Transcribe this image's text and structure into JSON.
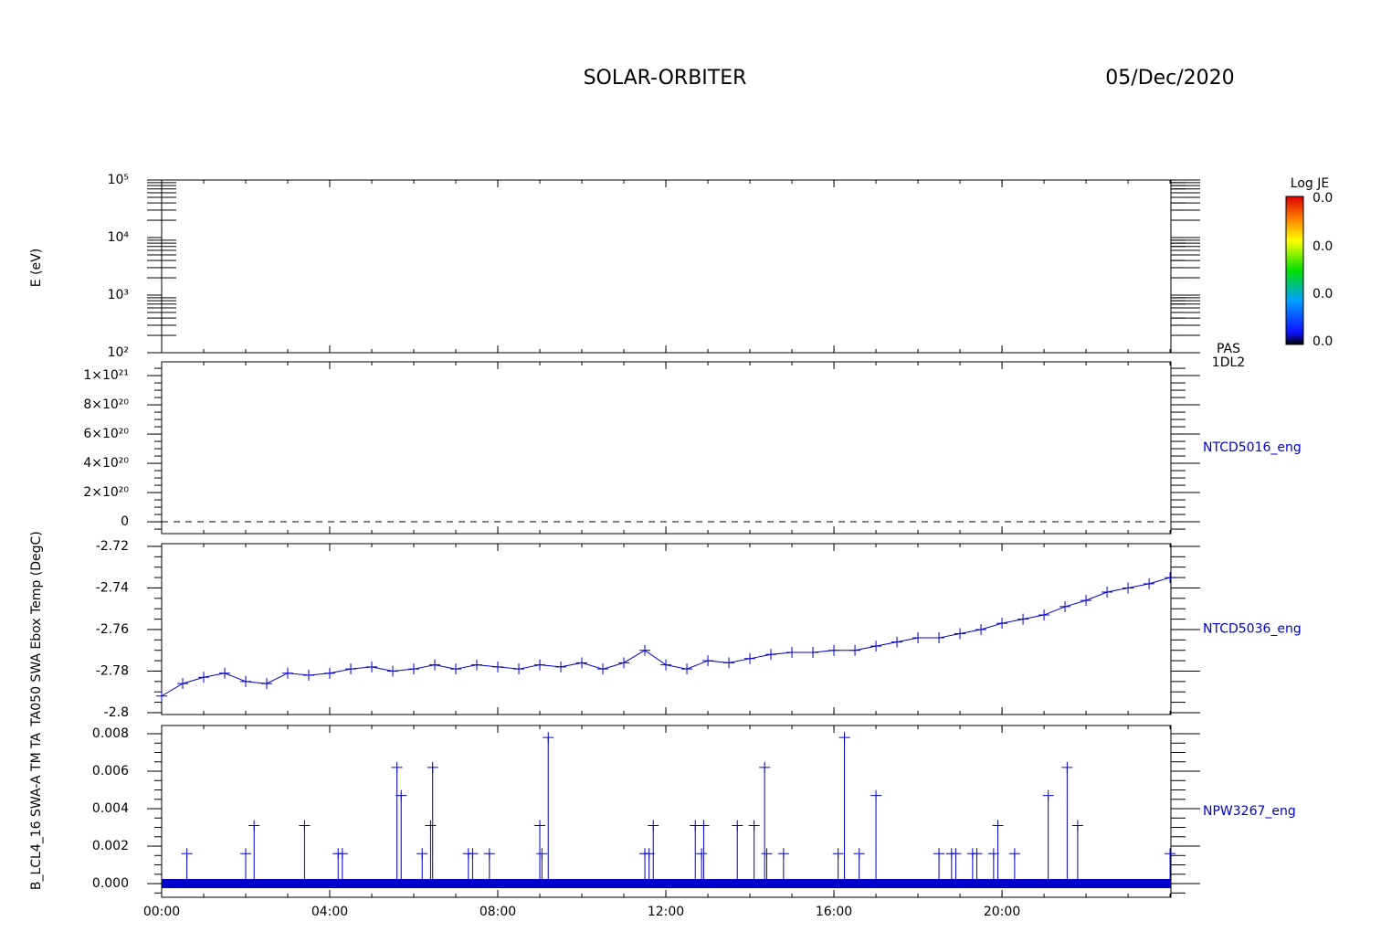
{
  "header": {
    "title": "SOLAR-ORBITER",
    "date": "05/Dec/2020"
  },
  "chart_data": [
    {
      "type": "spectrogram",
      "ylabel": "E (eV)",
      "instrument": "PAS",
      "level": "1DL2",
      "log_y": true,
      "ylim": [
        100,
        100000
      ],
      "yticks": [
        {
          "value": 100,
          "label": "10²"
        },
        {
          "value": 1000,
          "label": "10³"
        },
        {
          "value": 10000,
          "label": "10⁴"
        },
        {
          "value": 100000,
          "label": "10⁵"
        }
      ],
      "colorbar": {
        "title": "Log JE",
        "ticks": [
          "0.0",
          "0.0",
          "0.0",
          "0.0"
        ]
      }
    },
    {
      "type": "empty",
      "label": "NTCD5016_eng",
      "color": "#0000cc",
      "ylim": [
        -8.1e+19,
        1.094e+21
      ],
      "yticks": [
        {
          "value": 0,
          "label": "0"
        },
        {
          "value": 2e+20,
          "label": "2×10²⁰"
        },
        {
          "value": 4e+20,
          "label": "4×10²⁰"
        },
        {
          "value": 6e+20,
          "label": "6×10²⁰"
        },
        {
          "value": 8e+20,
          "label": "8×10²⁰"
        },
        {
          "value": 1e+21,
          "label": "1×10²¹"
        }
      ]
    },
    {
      "type": "line",
      "label": "NTCD5036_eng",
      "ylabel": "TA050 SWA Ebox Temp (DegC)",
      "color": "#0000cc",
      "ylim": [
        -2.8009,
        -2.7187
      ],
      "yticks": [
        -2.8,
        -2.78,
        -2.76,
        -2.74,
        -2.72
      ],
      "x": [
        0,
        0.5,
        1,
        1.5,
        2,
        2.5,
        3,
        3.5,
        4,
        4.5,
        5,
        5.5,
        6,
        6.5,
        7,
        7.5,
        8,
        8.5,
        9,
        9.5,
        10,
        10.5,
        11,
        11.5,
        12,
        12.5,
        13,
        13.5,
        14,
        14.5,
        15,
        15.5,
        16,
        16.5,
        17,
        17.5,
        18,
        18.5,
        19,
        19.5,
        20,
        20.5,
        21,
        21.5,
        22,
        22.5,
        23,
        23.5,
        24
      ],
      "values": [
        -2.792,
        -2.786,
        -2.783,
        -2.781,
        -2.785,
        -2.786,
        -2.781,
        -2.782,
        -2.781,
        -2.779,
        -2.778,
        -2.78,
        -2.779,
        -2.777,
        -2.779,
        -2.777,
        -2.778,
        -2.779,
        -2.777,
        -2.778,
        -2.776,
        -2.779,
        -2.776,
        -2.77,
        -2.777,
        -2.779,
        -2.775,
        -2.776,
        -2.774,
        -2.772,
        -2.771,
        -2.771,
        -2.77,
        -2.77,
        -2.768,
        -2.766,
        -2.764,
        -2.764,
        -2.762,
        -2.76,
        -2.757,
        -2.755,
        -2.753,
        -2.749,
        -2.746,
        -2.742,
        -2.74,
        -2.738,
        -2.735
      ]
    },
    {
      "type": "stem",
      "label": "NPW3267_eng",
      "ylabel": "B_LCL4_16 SWA-A TM TA",
      "color": "#0000cc",
      "ylim": [
        -0.00073,
        0.00844
      ],
      "yticks": [
        {
          "value": 0,
          "label": "0.000"
        },
        {
          "value": 0.002,
          "label": "0.002"
        },
        {
          "value": 0.004,
          "label": "0.004"
        },
        {
          "value": 0.006,
          "label": "0.006"
        },
        {
          "value": 0.008,
          "label": "0.008"
        }
      ],
      "xlim": [
        0,
        24.02
      ],
      "xticks": [
        {
          "value": 0,
          "label": "00:00"
        },
        {
          "value": 4,
          "label": "04:00"
        },
        {
          "value": 8,
          "label": "08:00"
        },
        {
          "value": 12,
          "label": "12:00"
        },
        {
          "value": 16,
          "label": "16:00"
        },
        {
          "value": 20,
          "label": "20:00"
        }
      ],
      "x": [
        0.6,
        2.0,
        2.2,
        3.4,
        4.2,
        4.3,
        5.6,
        5.7,
        6.2,
        6.4,
        6.45,
        7.3,
        7.4,
        7.8,
        9.0,
        9.05,
        9.2,
        11.5,
        11.6,
        11.7,
        12.7,
        12.85,
        12.9,
        13.7,
        14.1,
        14.35,
        14.4,
        14.8,
        16.1,
        16.25,
        16.6,
        17.0,
        18.5,
        18.8,
        18.9,
        19.3,
        19.4,
        19.8,
        19.9,
        20.3,
        21.1,
        21.55,
        21.8,
        24.0
      ],
      "values": [
        0.0016,
        0.0016,
        0.0031,
        0.0031,
        0.0016,
        0.0016,
        0.0062,
        0.0047,
        0.0016,
        0.0031,
        0.0062,
        0.0016,
        0.0016,
        0.0016,
        0.0031,
        0.0016,
        0.0078,
        0.0016,
        0.0016,
        0.0031,
        0.0031,
        0.0016,
        0.0031,
        0.0031,
        0.0031,
        0.0062,
        0.0016,
        0.0016,
        0.0016,
        0.0078,
        0.0016,
        0.0047,
        0.0016,
        0.0016,
        0.0016,
        0.0016,
        0.0016,
        0.0016,
        0.0031,
        0.0016,
        0.0047,
        0.0062,
        0.0031,
        0.0016
      ]
    }
  ]
}
